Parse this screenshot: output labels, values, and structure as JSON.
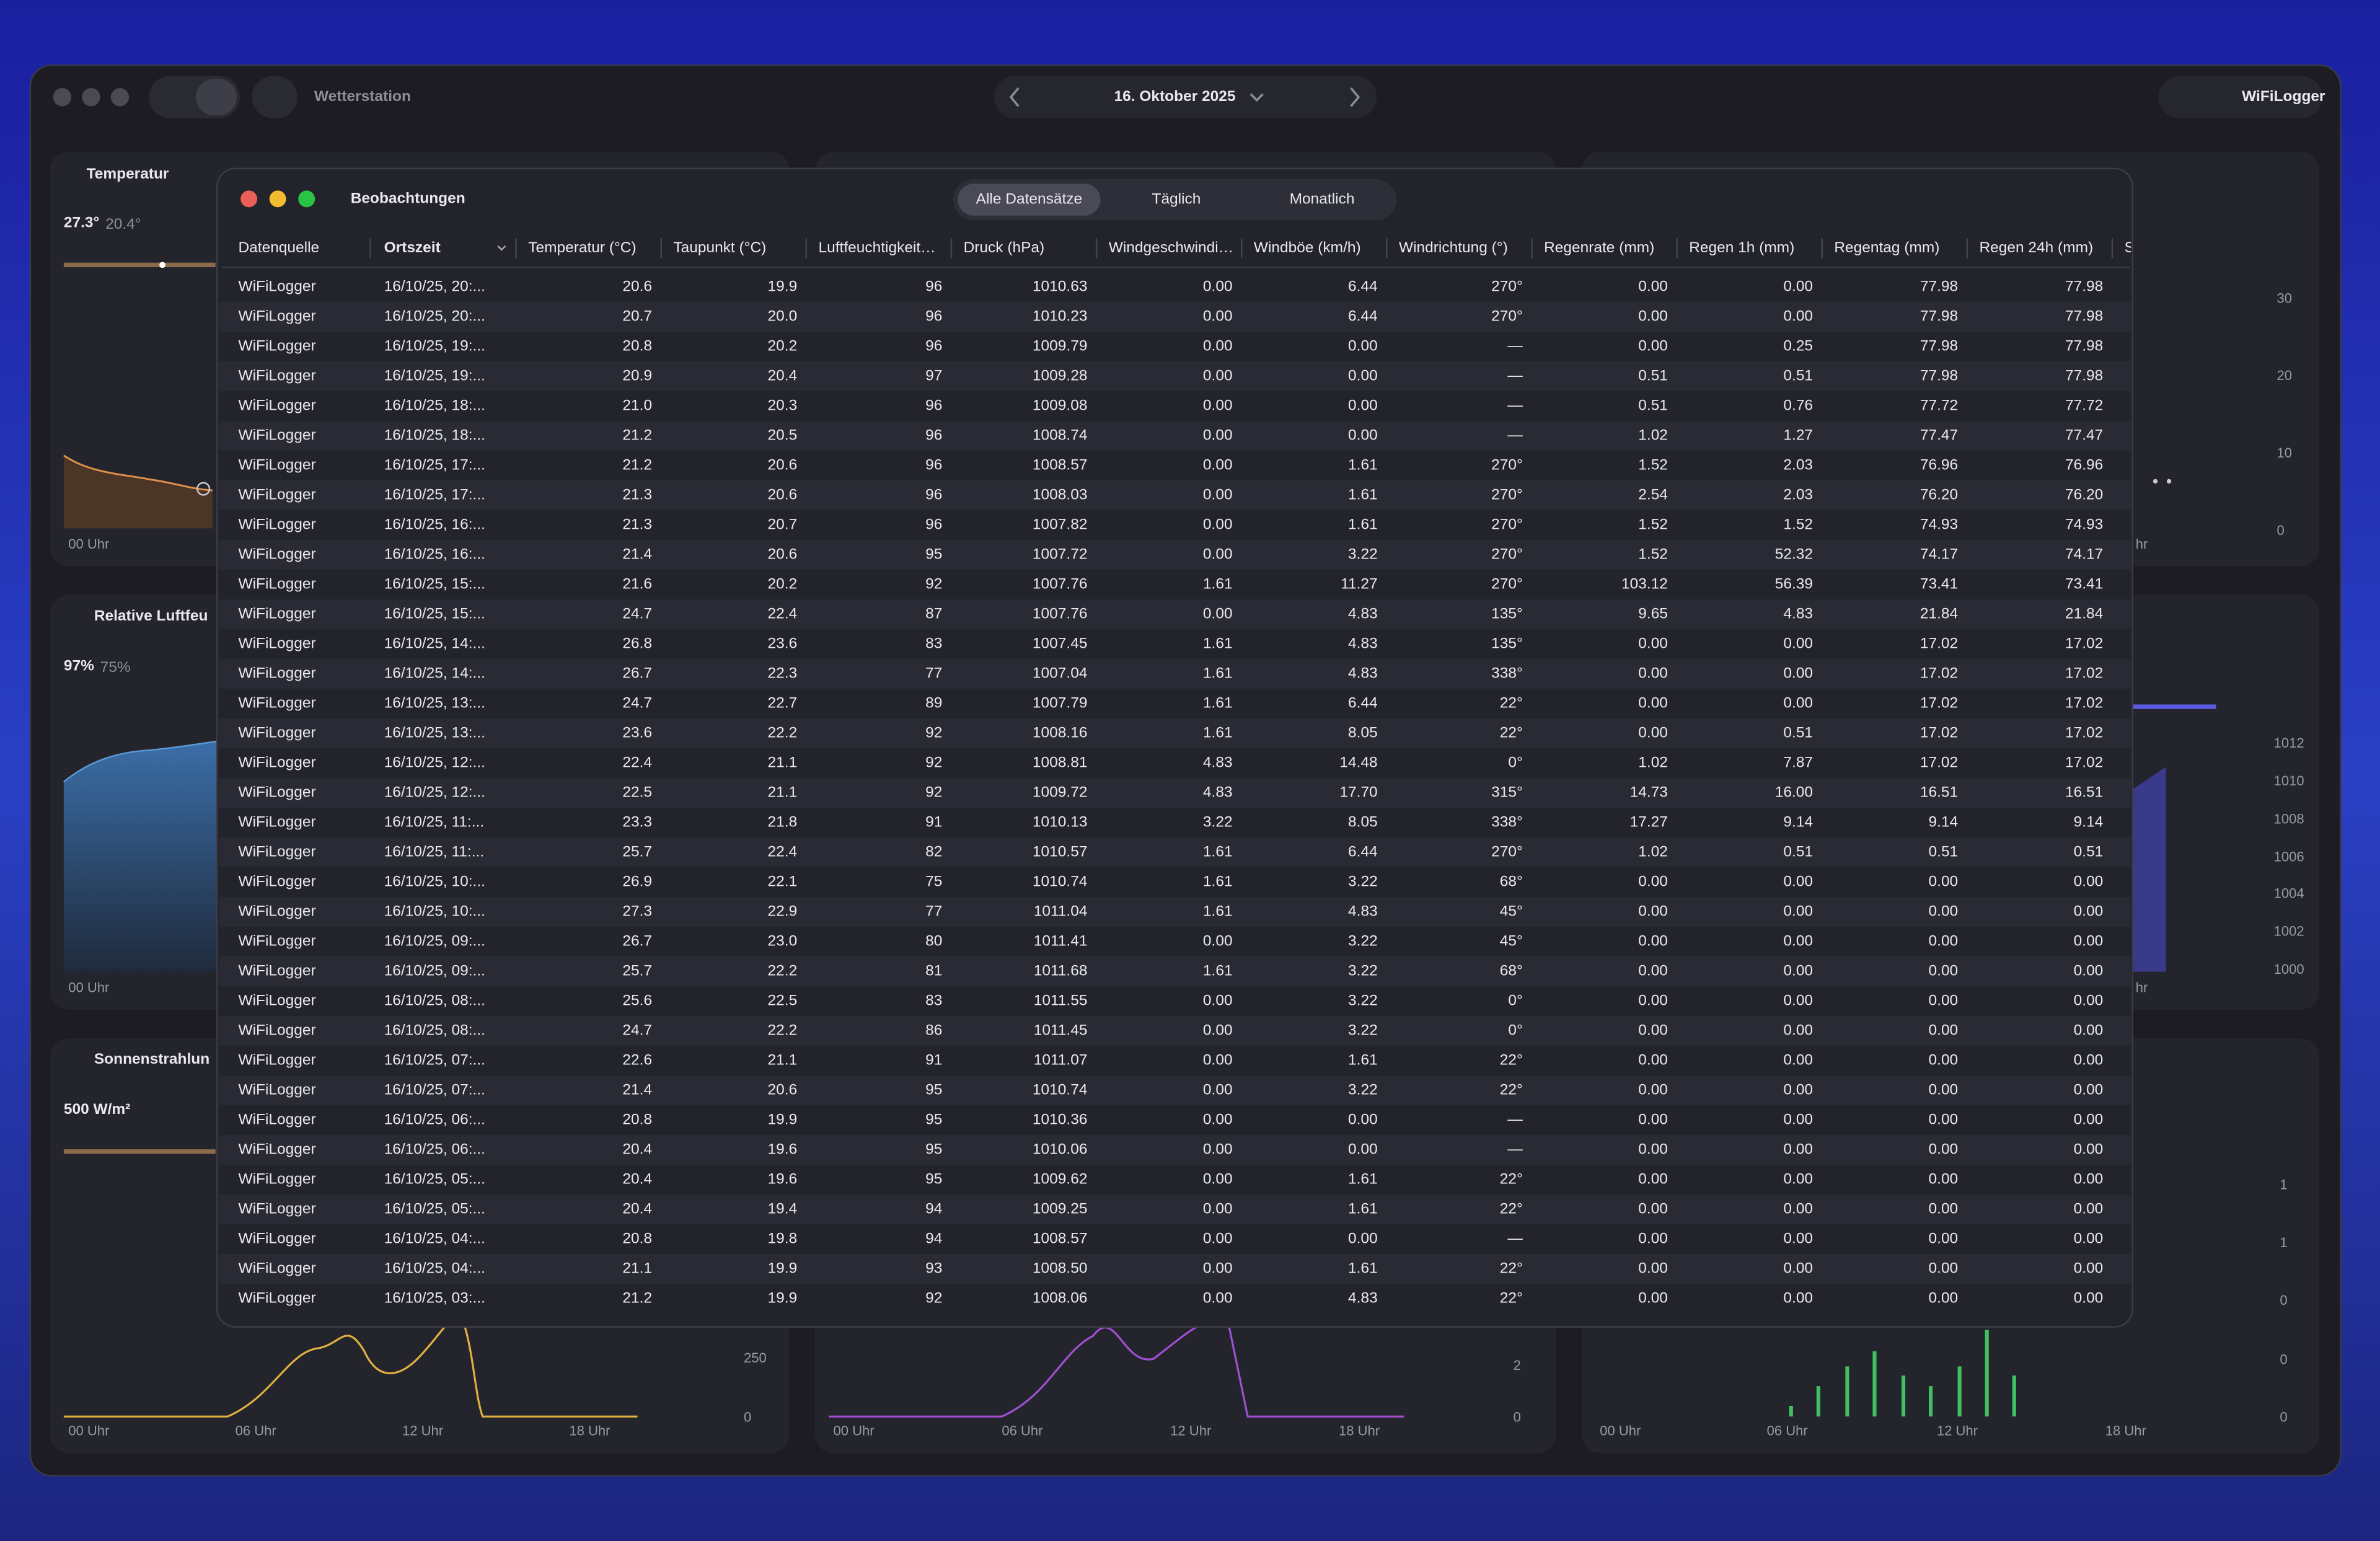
{
  "toolbar": {
    "title": "Wetterstation",
    "date": "16. Oktober 2025",
    "station": "WiFiLogger"
  },
  "cards": [
    {
      "title": "Temperatur",
      "value": "27.3°",
      "secondary": "20.4°",
      "x_labels": [
        "00 Uhr"
      ]
    },
    {
      "title": "Relative Luftfeu",
      "value": "97%",
      "secondary": "75%",
      "x_labels": [
        "00 Uhr"
      ]
    },
    {
      "title": "Sonnenstrahlun",
      "value": "500 W/m²",
      "x_labels": [
        "00 Uhr",
        "06 Uhr",
        "12 Uhr",
        "18 Uhr"
      ],
      "y_labels": [
        "250",
        "0"
      ]
    },
    {
      "x_labels": [
        "00 Uhr",
        "06 Uhr",
        "12 Uhr",
        "18 Uhr"
      ],
      "y_labels": [
        "2",
        "0"
      ]
    },
    {
      "x_labels": [
        "00 Uhr",
        "06 Uhr",
        "12 Uhr",
        "18 Uhr"
      ],
      "y_labels": [
        "1",
        "1",
        "0",
        "0",
        "0"
      ]
    },
    {
      "x_labels": [
        "hr"
      ],
      "y_labels": [
        "30",
        "20",
        "10",
        "0"
      ]
    },
    {
      "x_labels": [
        "hr"
      ],
      "y_labels": [
        "1012",
        "1010",
        "1008",
        "1006",
        "1004",
        "1002",
        "1000"
      ]
    }
  ],
  "modal": {
    "title": "Beobachtungen",
    "tabs": [
      "Alle Datensätze",
      "Täglich",
      "Monatlich"
    ],
    "table": {
      "columns": [
        "Datenquelle",
        "Ortszeit",
        "Temperatur (°C)",
        "Taupunkt (°C)",
        "Luftfeuchtigkeit…",
        "Druck (hPa)",
        "Windgeschwindi…",
        "Windböe (km/h)",
        "Windrichtung (°)",
        "Regenrate (mm)",
        "Regen 1h (mm)",
        "Regentag (mm)",
        "Regen 24h (mm)",
        "S"
      ],
      "rows": [
        [
          "WiFiLogger",
          "16/10/25, 20:...",
          "20.6",
          "19.9",
          "96",
          "1010.63",
          "0.00",
          "6.44",
          "270°",
          "0.00",
          "0.00",
          "77.98",
          "77.98"
        ],
        [
          "WiFiLogger",
          "16/10/25, 20:...",
          "20.7",
          "20.0",
          "96",
          "1010.23",
          "0.00",
          "6.44",
          "270°",
          "0.00",
          "0.00",
          "77.98",
          "77.98"
        ],
        [
          "WiFiLogger",
          "16/10/25, 19:...",
          "20.8",
          "20.2",
          "96",
          "1009.79",
          "0.00",
          "0.00",
          "—",
          "0.00",
          "0.25",
          "77.98",
          "77.98"
        ],
        [
          "WiFiLogger",
          "16/10/25, 19:...",
          "20.9",
          "20.4",
          "97",
          "1009.28",
          "0.00",
          "0.00",
          "—",
          "0.51",
          "0.51",
          "77.98",
          "77.98"
        ],
        [
          "WiFiLogger",
          "16/10/25, 18:...",
          "21.0",
          "20.3",
          "96",
          "1009.08",
          "0.00",
          "0.00",
          "—",
          "0.51",
          "0.76",
          "77.72",
          "77.72"
        ],
        [
          "WiFiLogger",
          "16/10/25, 18:...",
          "21.2",
          "20.5",
          "96",
          "1008.74",
          "0.00",
          "0.00",
          "—",
          "1.02",
          "1.27",
          "77.47",
          "77.47"
        ],
        [
          "WiFiLogger",
          "16/10/25, 17:...",
          "21.2",
          "20.6",
          "96",
          "1008.57",
          "0.00",
          "1.61",
          "270°",
          "1.52",
          "2.03",
          "76.96",
          "76.96"
        ],
        [
          "WiFiLogger",
          "16/10/25, 17:...",
          "21.3",
          "20.6",
          "96",
          "1008.03",
          "0.00",
          "1.61",
          "270°",
          "2.54",
          "2.03",
          "76.20",
          "76.20"
        ],
        [
          "WiFiLogger",
          "16/10/25, 16:...",
          "21.3",
          "20.7",
          "96",
          "1007.82",
          "0.00",
          "1.61",
          "270°",
          "1.52",
          "1.52",
          "74.93",
          "74.93"
        ],
        [
          "WiFiLogger",
          "16/10/25, 16:...",
          "21.4",
          "20.6",
          "95",
          "1007.72",
          "0.00",
          "3.22",
          "270°",
          "1.52",
          "52.32",
          "74.17",
          "74.17"
        ],
        [
          "WiFiLogger",
          "16/10/25, 15:...",
          "21.6",
          "20.2",
          "92",
          "1007.76",
          "1.61",
          "11.27",
          "270°",
          "103.12",
          "56.39",
          "73.41",
          "73.41"
        ],
        [
          "WiFiLogger",
          "16/10/25, 15:...",
          "24.7",
          "22.4",
          "87",
          "1007.76",
          "0.00",
          "4.83",
          "135°",
          "9.65",
          "4.83",
          "21.84",
          "21.84"
        ],
        [
          "WiFiLogger",
          "16/10/25, 14:...",
          "26.8",
          "23.6",
          "83",
          "1007.45",
          "1.61",
          "4.83",
          "135°",
          "0.00",
          "0.00",
          "17.02",
          "17.02"
        ],
        [
          "WiFiLogger",
          "16/10/25, 14:...",
          "26.7",
          "22.3",
          "77",
          "1007.04",
          "1.61",
          "4.83",
          "338°",
          "0.00",
          "0.00",
          "17.02",
          "17.02"
        ],
        [
          "WiFiLogger",
          "16/10/25, 13:...",
          "24.7",
          "22.7",
          "89",
          "1007.79",
          "1.61",
          "6.44",
          "22°",
          "0.00",
          "0.00",
          "17.02",
          "17.02"
        ],
        [
          "WiFiLogger",
          "16/10/25, 13:...",
          "23.6",
          "22.2",
          "92",
          "1008.16",
          "1.61",
          "8.05",
          "22°",
          "0.00",
          "0.51",
          "17.02",
          "17.02"
        ],
        [
          "WiFiLogger",
          "16/10/25, 12:...",
          "22.4",
          "21.1",
          "92",
          "1008.81",
          "4.83",
          "14.48",
          "0°",
          "1.02",
          "7.87",
          "17.02",
          "17.02"
        ],
        [
          "WiFiLogger",
          "16/10/25, 12:...",
          "22.5",
          "21.1",
          "92",
          "1009.72",
          "4.83",
          "17.70",
          "315°",
          "14.73",
          "16.00",
          "16.51",
          "16.51"
        ],
        [
          "WiFiLogger",
          "16/10/25, 11:...",
          "23.3",
          "21.8",
          "91",
          "1010.13",
          "3.22",
          "8.05",
          "338°",
          "17.27",
          "9.14",
          "9.14",
          "9.14"
        ],
        [
          "WiFiLogger",
          "16/10/25, 11:...",
          "25.7",
          "22.4",
          "82",
          "1010.57",
          "1.61",
          "6.44",
          "270°",
          "1.02",
          "0.51",
          "0.51",
          "0.51"
        ],
        [
          "WiFiLogger",
          "16/10/25, 10:...",
          "26.9",
          "22.1",
          "75",
          "1010.74",
          "1.61",
          "3.22",
          "68°",
          "0.00",
          "0.00",
          "0.00",
          "0.00"
        ],
        [
          "WiFiLogger",
          "16/10/25, 10:...",
          "27.3",
          "22.9",
          "77",
          "1011.04",
          "1.61",
          "4.83",
          "45°",
          "0.00",
          "0.00",
          "0.00",
          "0.00"
        ],
        [
          "WiFiLogger",
          "16/10/25, 09:...",
          "26.7",
          "23.0",
          "80",
          "1011.41",
          "0.00",
          "3.22",
          "45°",
          "0.00",
          "0.00",
          "0.00",
          "0.00"
        ],
        [
          "WiFiLogger",
          "16/10/25, 09:...",
          "25.7",
          "22.2",
          "81",
          "1011.68",
          "1.61",
          "3.22",
          "68°",
          "0.00",
          "0.00",
          "0.00",
          "0.00"
        ],
        [
          "WiFiLogger",
          "16/10/25, 08:...",
          "25.6",
          "22.5",
          "83",
          "1011.55",
          "0.00",
          "3.22",
          "0°",
          "0.00",
          "0.00",
          "0.00",
          "0.00"
        ],
        [
          "WiFiLogger",
          "16/10/25, 08:...",
          "24.7",
          "22.2",
          "86",
          "1011.45",
          "0.00",
          "3.22",
          "0°",
          "0.00",
          "0.00",
          "0.00",
          "0.00"
        ],
        [
          "WiFiLogger",
          "16/10/25, 07:...",
          "22.6",
          "21.1",
          "91",
          "1011.07",
          "0.00",
          "1.61",
          "22°",
          "0.00",
          "0.00",
          "0.00",
          "0.00"
        ],
        [
          "WiFiLogger",
          "16/10/25, 07:...",
          "21.4",
          "20.6",
          "95",
          "1010.74",
          "0.00",
          "3.22",
          "22°",
          "0.00",
          "0.00",
          "0.00",
          "0.00"
        ],
        [
          "WiFiLogger",
          "16/10/25, 06:...",
          "20.8",
          "19.9",
          "95",
          "1010.36",
          "0.00",
          "0.00",
          "—",
          "0.00",
          "0.00",
          "0.00",
          "0.00"
        ],
        [
          "WiFiLogger",
          "16/10/25, 06:...",
          "20.4",
          "19.6",
          "95",
          "1010.06",
          "0.00",
          "0.00",
          "—",
          "0.00",
          "0.00",
          "0.00",
          "0.00"
        ],
        [
          "WiFiLogger",
          "16/10/25, 05:...",
          "20.4",
          "19.6",
          "95",
          "1009.62",
          "0.00",
          "1.61",
          "22°",
          "0.00",
          "0.00",
          "0.00",
          "0.00"
        ],
        [
          "WiFiLogger",
          "16/10/25, 05:...",
          "20.4",
          "19.4",
          "94",
          "1009.25",
          "0.00",
          "1.61",
          "22°",
          "0.00",
          "0.00",
          "0.00",
          "0.00"
        ],
        [
          "WiFiLogger",
          "16/10/25, 04:...",
          "20.8",
          "19.8",
          "94",
          "1008.57",
          "0.00",
          "0.00",
          "—",
          "0.00",
          "0.00",
          "0.00",
          "0.00"
        ],
        [
          "WiFiLogger",
          "16/10/25, 04:...",
          "21.1",
          "19.9",
          "93",
          "1008.50",
          "0.00",
          "1.61",
          "22°",
          "0.00",
          "0.00",
          "0.00",
          "0.00"
        ],
        [
          "WiFiLogger",
          "16/10/25, 03:...",
          "21.2",
          "19.9",
          "92",
          "1008.06",
          "0.00",
          "4.83",
          "22°",
          "0.00",
          "0.00",
          "0.00",
          "0.00"
        ]
      ]
    }
  }
}
